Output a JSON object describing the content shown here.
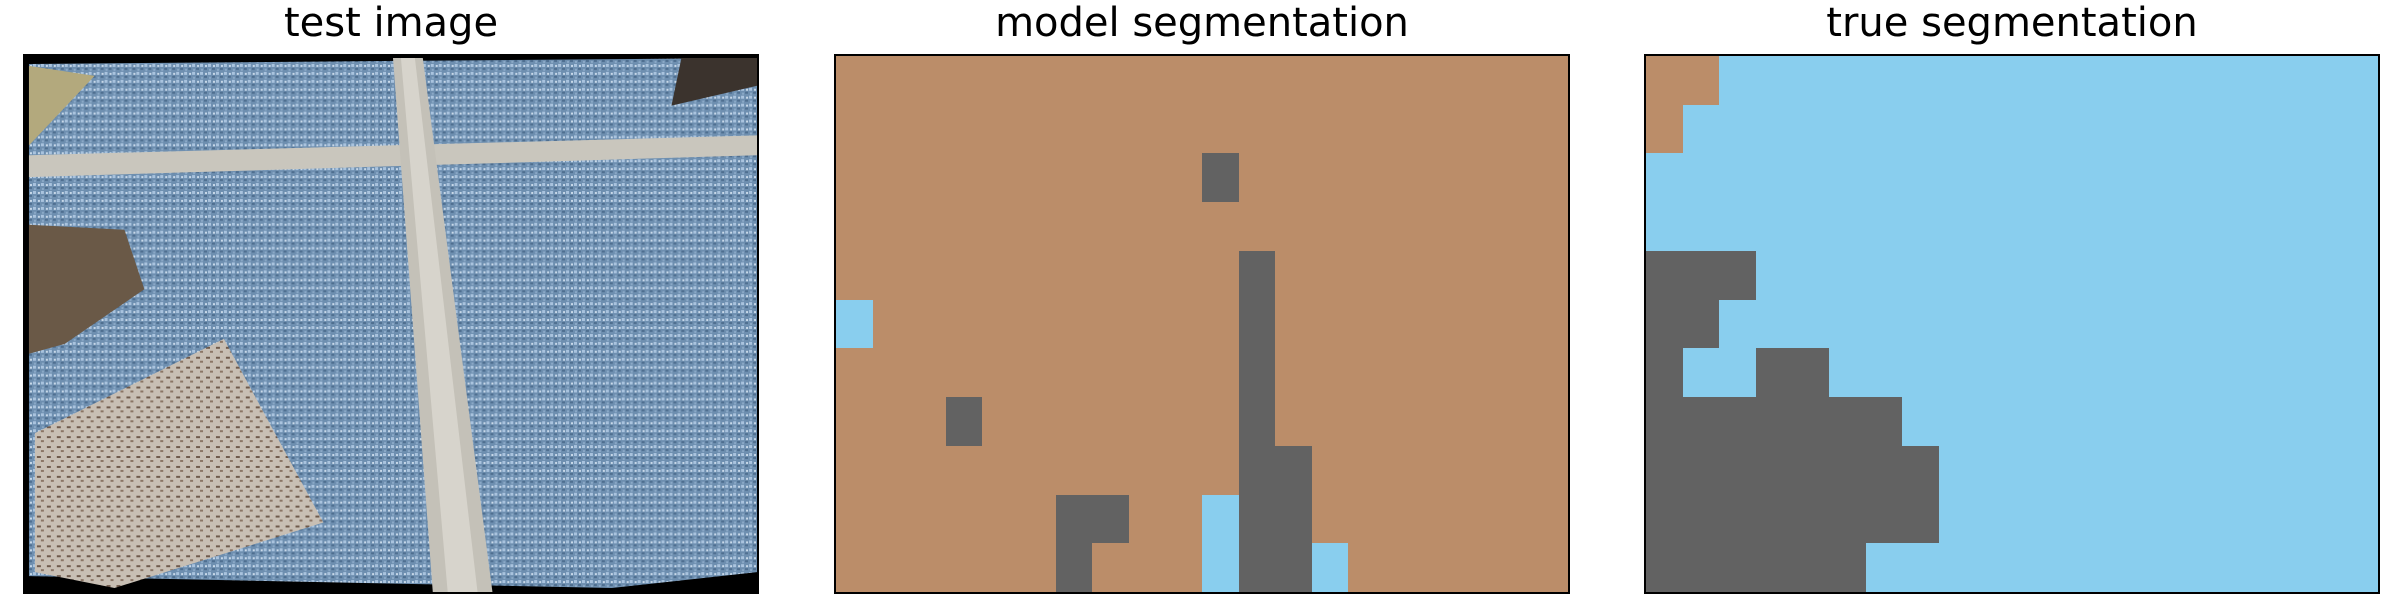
{
  "panels": [
    {
      "title": "test image"
    },
    {
      "title": "model segmentation"
    },
    {
      "title": "true segmentation"
    }
  ],
  "legend_colors": {
    "tan": "#bb8d69",
    "gray": "#626262",
    "blue": "#89ceee"
  },
  "model_segmentation": [
    "TTTTTTTTTTTTTTTTTTTT",
    "TTTTTTTTTTTTTTTTTTTT",
    "TTTTTTTTTTGTTTTTTTTT",
    "TTTTTTTTTTTTTTTTTTTT",
    "TTTTTTTTTTTGTTTTTTTT",
    "BTTTTTTTTTTGTTTTTTTT",
    "TTTTTTTTTTTGTTTTTTTT",
    "TTTGTTTTTTTGTTTTTTTT",
    "TTTTTTTTTTTGGTTTTTTT",
    "TTTTTTGGTTBGGTTTTTTT",
    "TTTTTTGTTTBGGBTTTTTT"
  ],
  "true_segmentation": [
    "TTBBBBBBBBBBBBBBBBBB",
    "TBBBBBBBBBBBBBBBBBBB",
    "BBBBBBBBBBBBBBBBBBBB",
    "BBBBBBBBBBBBBBBBBBBB",
    "GGGBBBBBBBBBBBBBBBBB",
    "GGBBBBBBBBBBBBBBBBBB",
    "GBBGGBBBBBBBBBBBBBBB",
    "GGGGGGGBBBBBBBBBBBBB",
    "GGGGGGGGBBBBBBBBBBBB",
    "GGGGGGGGBBBBBBBBBBBB",
    "GGGGGGBBBBBBBBBBBBBB"
  ]
}
